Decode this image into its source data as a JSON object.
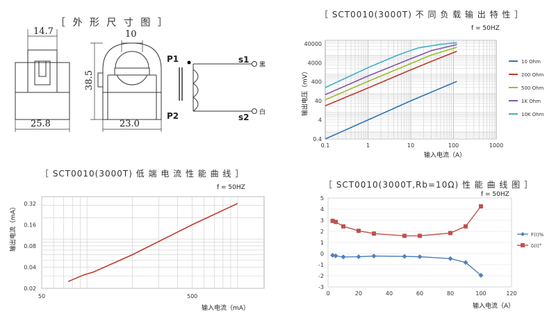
{
  "dimensions": {
    "title": "［ 外 形 尺 寸 图 ］",
    "labels": {
      "d1": "14.7",
      "d2": "10",
      "d3": "38.5",
      "d4": "25.8",
      "d5": "23.0",
      "p1": "P1",
      "p2": "P2",
      "s1": "s1",
      "s2": "s2",
      "s1_color": "黑",
      "s2_color": "白"
    }
  },
  "chart_tr": {
    "title": "［ SCT0010(3000T) 不 同 负 载 输 出 特 性 ］",
    "freq": "f = 50HZ",
    "type": "line",
    "xlabel": "输入电流（A）",
    "ylabel": "输出电压（mV）",
    "x_scale": "log",
    "y_scale": "log",
    "xlim": [
      0.1,
      1000
    ],
    "ylim": [
      0.4,
      60000
    ],
    "xticks": [
      0.1,
      1,
      10,
      100,
      1000
    ],
    "xtick_labels": [
      "0.1",
      "1",
      "10",
      "100",
      "1000"
    ],
    "yticks": [
      0.4,
      4,
      40,
      400,
      4000,
      40000
    ],
    "ytick_labels": [
      "0.4",
      "4",
      "40",
      "400",
      "4000",
      "40000"
    ],
    "legend_position": "right",
    "series": [
      {
        "name": "10 Ohm",
        "color": "#2e75b6",
        "points": [
          [
            0.1,
            0.4
          ],
          [
            1,
            4
          ],
          [
            10,
            40
          ],
          [
            120,
            420
          ]
        ]
      },
      {
        "name": "200 Ohm",
        "color": "#c0392b",
        "points": [
          [
            0.1,
            22
          ],
          [
            1,
            190
          ],
          [
            10,
            1700
          ],
          [
            40,
            6000
          ],
          [
            120,
            16000
          ]
        ]
      },
      {
        "name": "500 Ohm",
        "color": "#9bbb2f",
        "points": [
          [
            0.1,
            45
          ],
          [
            1,
            420
          ],
          [
            10,
            3600
          ],
          [
            30,
            10000
          ],
          [
            120,
            26000
          ]
        ]
      },
      {
        "name": "1K Ohm",
        "color": "#7e57a5",
        "points": [
          [
            0.1,
            85
          ],
          [
            1,
            800
          ],
          [
            10,
            6500
          ],
          [
            30,
            17000
          ],
          [
            120,
            36000
          ]
        ]
      },
      {
        "name": "10K Ohm",
        "color": "#3fb1c7",
        "points": [
          [
            0.1,
            200
          ],
          [
            1,
            2200
          ],
          [
            5,
            10000
          ],
          [
            15,
            24000
          ],
          [
            50,
            37000
          ],
          [
            120,
            45000
          ]
        ]
      }
    ]
  },
  "chart_bl": {
    "title": "［ SCT0010(3000T) 低 端 电 流 性 能 曲 线 ］",
    "freq": "f = 50HZ",
    "type": "line",
    "xlabel": "输入电流（mA）",
    "ylabel": "输出电流（mA）",
    "x_scale": "log",
    "y_scale": "log",
    "xlim": [
      50,
      1500
    ],
    "ylim": [
      0.02,
      0.4
    ],
    "xticks": [
      50,
      500
    ],
    "xtick_labels": [
      "50",
      "500"
    ],
    "yticks": [
      0.02,
      0.04,
      0.08,
      0.16,
      0.32
    ],
    "ytick_labels": [
      "0.02",
      "0.04",
      "0.08",
      "0.16",
      "0.32"
    ],
    "series": [
      {
        "name": "",
        "color": "#c0392b",
        "points": [
          [
            75,
            0.025
          ],
          [
            95,
            0.031
          ],
          [
            110,
            0.034
          ],
          [
            200,
            0.06
          ],
          [
            500,
            0.16
          ],
          [
            1000,
            0.32
          ]
        ]
      }
    ]
  },
  "chart_br": {
    "title": "［ SCT0010(3000T,Rb=10Ω) 性 能 曲 线 图 ］",
    "freq": "f = 50HZ",
    "type": "line",
    "xlabel": "输入电流（A）",
    "xlim": [
      0,
      120
    ],
    "ylim": [
      -3,
      5
    ],
    "xticks": [
      0,
      20,
      40,
      60,
      80,
      100,
      120
    ],
    "yticks": [
      -3,
      -2,
      -1,
      0,
      1,
      2,
      3,
      4,
      5
    ],
    "legend_position": "right",
    "series": [
      {
        "name": "F(I)%",
        "color": "#4f81bd",
        "marker": "diamond",
        "points": [
          [
            3,
            -0.15
          ],
          [
            5,
            -0.2
          ],
          [
            10,
            -0.3
          ],
          [
            20,
            -0.28
          ],
          [
            30,
            -0.22
          ],
          [
            50,
            -0.25
          ],
          [
            60,
            -0.28
          ],
          [
            80,
            -0.45
          ],
          [
            90,
            -0.8
          ],
          [
            100,
            -1.95
          ]
        ]
      },
      {
        "name": "δ(I)°",
        "color": "#c0504d",
        "marker": "square",
        "points": [
          [
            3,
            2.95
          ],
          [
            5,
            2.85
          ],
          [
            10,
            2.45
          ],
          [
            20,
            2.05
          ],
          [
            30,
            1.8
          ],
          [
            50,
            1.6
          ],
          [
            60,
            1.6
          ],
          [
            80,
            1.85
          ],
          [
            90,
            2.45
          ],
          [
            100,
            4.25
          ]
        ]
      }
    ]
  }
}
